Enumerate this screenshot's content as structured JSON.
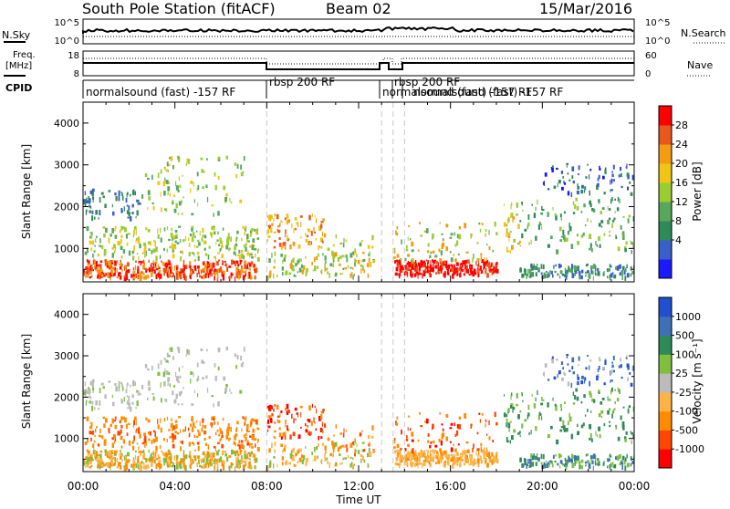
{
  "header": {
    "station": "South Pole Station (fitACF)",
    "beam": "Beam 02",
    "date": "15/Mar/2016"
  },
  "top_panels": {
    "nsky_label": "N.Sky",
    "nsky_ticks": [
      "10^5",
      "10^0"
    ],
    "nsearch_label": "N.Search",
    "nsearch_ticks": [
      "10^5",
      "10^0"
    ],
    "freq_label_line1": "Freq.",
    "freq_label_line2": "[MHz]",
    "freq_ticks": [
      "18",
      "8"
    ],
    "nave_label": "Nave",
    "nave_ticks": [
      "60",
      "0"
    ],
    "cpid_label": "CPID"
  },
  "cpid_segments": [
    {
      "label": "normalsound (fast) -157 RF",
      "start_hour": 0.0
    },
    {
      "label": "rbsp 200 RF",
      "start_hour": 8.0
    },
    {
      "label": "normalsound (fast) -157 RF",
      "start_hour": 13.0
    },
    {
      "label": "rbsp 200 RF",
      "start_hour": 14.0
    },
    {
      "label": "normalsound (fast) -157 RF",
      "start_hour": 15.0
    }
  ],
  "colors": {
    "power": [
      "#1a1aff",
      "#3a5fc6",
      "#2e8b57",
      "#57a85a",
      "#9acd32",
      "#f0c419",
      "#f39c12",
      "#e8581c",
      "#ff0000"
    ],
    "velocity": [
      "#ff0000",
      "#ff4500",
      "#ff8c00",
      "#ffb347",
      "#bbbbbb",
      "#7fbf3f",
      "#2e8b57",
      "#3f6fb5",
      "#2050d0"
    ],
    "grid_dash": "#c8c8c8"
  },
  "chart_data": [
    {
      "type": "heatmap",
      "title": "Power",
      "ylabel": "Slant Range [km]",
      "xlabel": "Time UT",
      "colorbar_label": "Power [dB]",
      "colorbar_ticks": [
        "28",
        "24",
        "20",
        "16",
        "12",
        "8",
        "4"
      ],
      "y_ticks": [
        "4000",
        "3000",
        "2000",
        "1000"
      ],
      "ylim": [
        200,
        4500
      ],
      "xlim_hours": [
        0,
        24
      ]
    },
    {
      "type": "heatmap",
      "title": "Velocity",
      "ylabel": "Slant Range [km]",
      "xlabel": "Time UT",
      "colorbar_label": "Velocity [m s⁻¹]",
      "colorbar_ticks": [
        "1000",
        "500",
        "100",
        "25",
        "-25",
        "-100",
        "-500",
        "-1000"
      ],
      "y_ticks": [
        "4000",
        "3000",
        "2000",
        "1000"
      ],
      "ylim": [
        200,
        4500
      ],
      "xlim_hours": [
        0,
        24
      ]
    }
  ],
  "x_axis": {
    "ticks": [
      "00:00",
      "04:00",
      "08:00",
      "12:00",
      "16:00",
      "20:00",
      "00:00"
    ],
    "label": "Time UT"
  }
}
